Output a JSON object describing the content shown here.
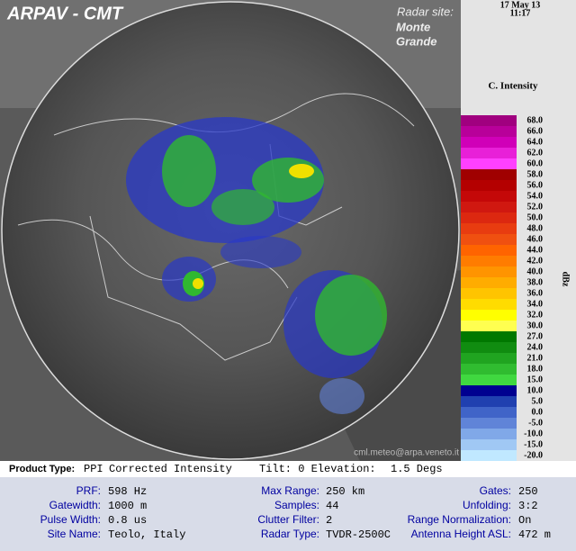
{
  "header": {
    "title": "ARPAV - CMT",
    "site_label": "Radar site:",
    "site_name_line1": "Monte",
    "site_name_line2": "Grande",
    "credit": "cml.meteo@arpa.veneto.it"
  },
  "side": {
    "date": "17 May 13",
    "time": "11:17",
    "product": "C. Intensity",
    "unit": "dBz"
  },
  "legend": [
    {
      "label": "68.0",
      "color": "#a0007f"
    },
    {
      "label": "66.0",
      "color": "#b8009a"
    },
    {
      "label": "64.0",
      "color": "#d000b8"
    },
    {
      "label": "62.0",
      "color": "#e820d8"
    },
    {
      "label": "60.0",
      "color": "#ff40ff"
    },
    {
      "label": "58.0",
      "color": "#a00000"
    },
    {
      "label": "56.0",
      "color": "#b40000"
    },
    {
      "label": "54.0",
      "color": "#c40808"
    },
    {
      "label": "52.0",
      "color": "#d01810"
    },
    {
      "label": "50.0",
      "color": "#dc2810"
    },
    {
      "label": "48.0",
      "color": "#e83c10"
    },
    {
      "label": "46.0",
      "color": "#f05010"
    },
    {
      "label": "44.0",
      "color": "#ff6400"
    },
    {
      "label": "42.0",
      "color": "#ff7c00"
    },
    {
      "label": "40.0",
      "color": "#ff9400"
    },
    {
      "label": "38.0",
      "color": "#ffac00"
    },
    {
      "label": "36.0",
      "color": "#ffc400"
    },
    {
      "label": "34.0",
      "color": "#ffdc00"
    },
    {
      "label": "32.0",
      "color": "#ffff00"
    },
    {
      "label": "30.0",
      "color": "#ffff50"
    },
    {
      "label": "27.0",
      "color": "#007800"
    },
    {
      "label": "24.0",
      "color": "#108c10"
    },
    {
      "label": "21.0",
      "color": "#20a420"
    },
    {
      "label": "18.0",
      "color": "#30bc30"
    },
    {
      "label": "15.0",
      "color": "#40d840"
    },
    {
      "label": "10.0",
      "color": "#000090"
    },
    {
      "label": "5.0",
      "color": "#2040b0"
    },
    {
      "label": "0.0",
      "color": "#4064c8"
    },
    {
      "label": "-5.0",
      "color": "#6084d8"
    },
    {
      "label": "-10.0",
      "color": "#80a8e8"
    },
    {
      "label": "-15.0",
      "color": "#a0c8f4"
    },
    {
      "label": "-20.0",
      "color": "#c0e8ff"
    }
  ],
  "product_bar": {
    "label": "Product Type:",
    "type": "PPI",
    "name": "Corrected Intensity",
    "tilt": "Tilt: 0 Elevation:",
    "elevation": "1.5 Degs"
  },
  "info": [
    [
      {
        "label": "PRF:",
        "value": "598 Hz"
      },
      {
        "label": "Max Range:",
        "value": "250 km"
      },
      {
        "label": "Gates:",
        "value": "250"
      }
    ],
    [
      {
        "label": "Gatewidth:",
        "value": "1000 m"
      },
      {
        "label": "Samples:",
        "value": "44"
      },
      {
        "label": "Unfolding:",
        "value": "3:2"
      }
    ],
    [
      {
        "label": "Pulse Width:",
        "value": "0.8 us"
      },
      {
        "label": "Clutter Filter:",
        "value": "2"
      },
      {
        "label": "Range Normalization:",
        "value": "On"
      }
    ],
    [
      {
        "label": "Site Name:",
        "value": "Teolo, Italy"
      },
      {
        "label": "Radar Type:",
        "value": "TVDR-2500C"
      },
      {
        "label": "Antenna Height ASL:",
        "value": "472 m"
      }
    ]
  ]
}
